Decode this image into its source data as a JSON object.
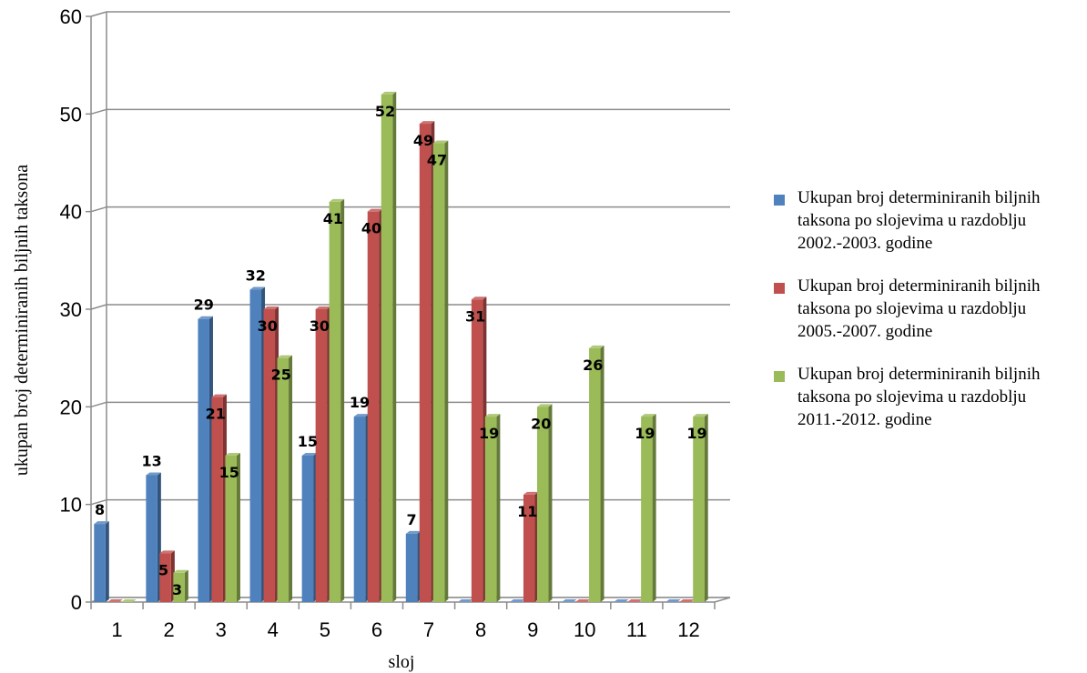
{
  "chart_data": {
    "type": "bar",
    "style": "3d-clustered",
    "categories": [
      "1",
      "2",
      "3",
      "4",
      "5",
      "6",
      "7",
      "8",
      "9",
      "10",
      "11",
      "12"
    ],
    "series": [
      {
        "name": "Ukupan broj determiniranih biljnih taksona po slojevima u razdoblju 2002.-2003. godine",
        "color": "#4f81bd",
        "values": [
          8,
          13,
          29,
          32,
          15,
          19,
          7,
          0,
          0,
          0,
          0,
          0
        ]
      },
      {
        "name": "Ukupan broj determiniranih biljnih taksona po slojevima u razdoblju 2005.-2007. godine",
        "color": "#c0504d",
        "values": [
          0,
          5,
          21,
          30,
          30,
          40,
          49,
          31,
          11,
          0,
          0,
          0
        ]
      },
      {
        "name": "Ukupan broj determiniranih biljnih taksona po slojevima u razdoblju 2011.-2012. godine",
        "color": "#9bbb59",
        "values": [
          0,
          3,
          15,
          25,
          41,
          52,
          47,
          19,
          20,
          26,
          19,
          19
        ]
      }
    ],
    "xlabel": "sloj",
    "ylabel": "ukupan broj determiniranih biljnih taksona",
    "ylim": [
      0,
      60
    ],
    "yticks": [
      0,
      10,
      20,
      30,
      40,
      50,
      60
    ],
    "grid": true,
    "legend": "right"
  }
}
